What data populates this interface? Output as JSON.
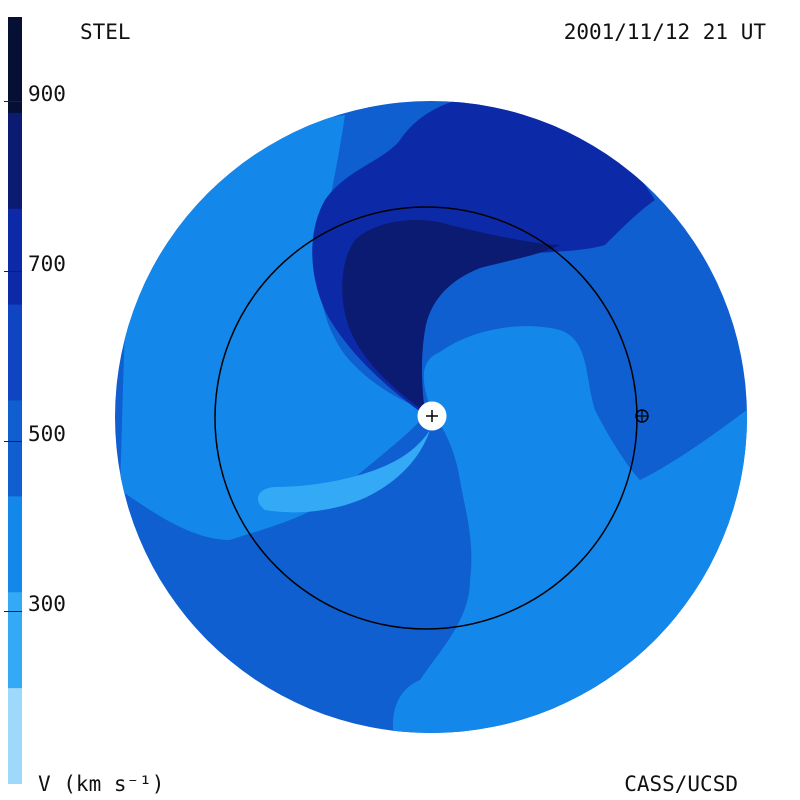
{
  "header": {
    "instrument": "STEL",
    "datetime": "2001/11/12 21 UT"
  },
  "footer": {
    "credit": "CASS/UCSD",
    "units": "V (km s⁻¹)"
  },
  "colorbar": {
    "bands": [
      {
        "color": "#051034"
      },
      {
        "color": "#0b1b72"
      },
      {
        "color": "#0c2aa8"
      },
      {
        "color": "#0f45c2"
      },
      {
        "color": "#0f5fd0"
      },
      {
        "color": "#1487ea"
      },
      {
        "color": "#34a9f5"
      },
      {
        "color": "#9ed8fb"
      }
    ],
    "ticks": [
      {
        "label": "900"
      },
      {
        "label": "700"
      },
      {
        "label": "500"
      },
      {
        "label": "300"
      }
    ]
  },
  "colors": {
    "outer_disk": "#0f5fd0",
    "light_region": "#1487ea",
    "dark_region": "#0c2aa8",
    "darkest_region": "#0b1b72",
    "fast_stream": "#34a9f5",
    "orbit": "#000000",
    "sun_fill": "#ffffff"
  },
  "markers": {
    "sun": "sun-marker",
    "earth": "earth-marker"
  }
}
